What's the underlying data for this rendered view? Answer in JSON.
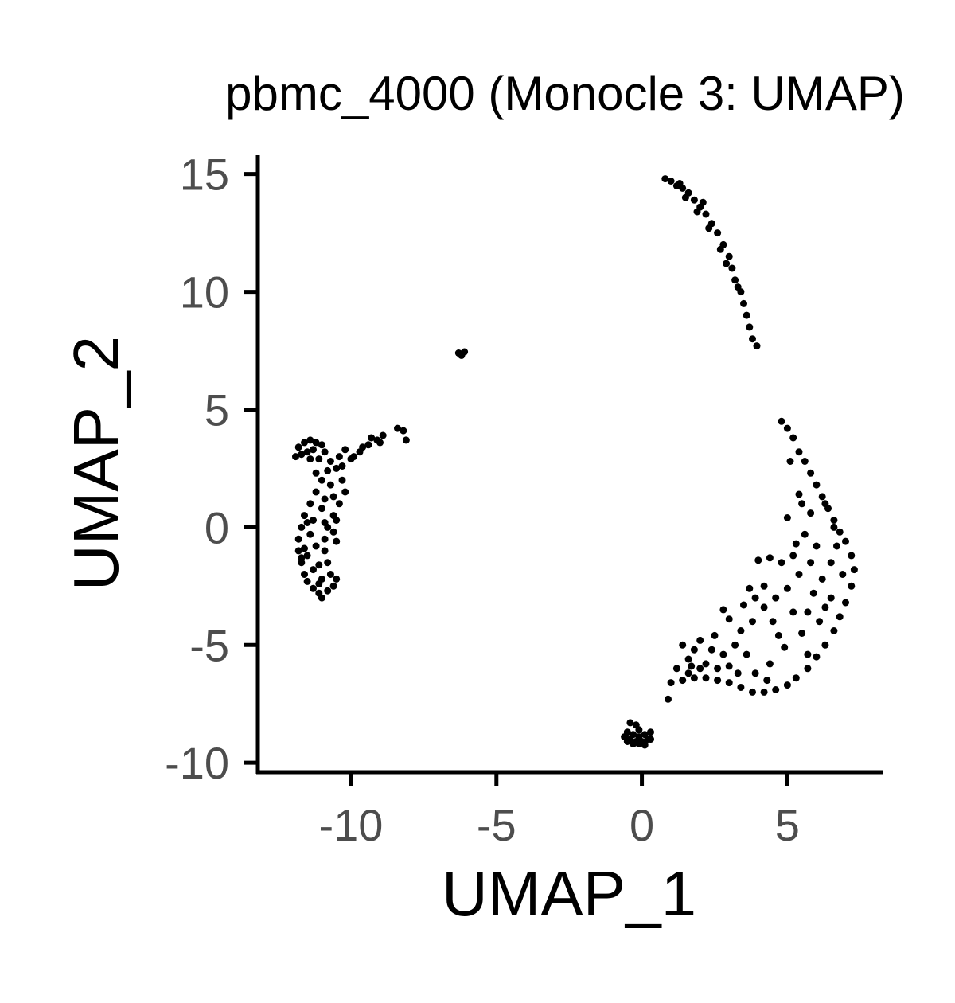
{
  "chart_data": {
    "type": "scatter",
    "title": "pbmc_4000 (Monocle 3: UMAP)",
    "xlabel": "UMAP_1",
    "ylabel": "UMAP_2",
    "xlim": [
      -13.2,
      8.3
    ],
    "ylim": [
      -10.4,
      15.8
    ],
    "x_ticks": [
      -10,
      -5,
      0,
      5
    ],
    "y_ticks": [
      -10,
      -5,
      0,
      5,
      10,
      15
    ],
    "x_tick_labels": [
      "-10",
      "-5",
      "0",
      "5"
    ],
    "y_tick_labels": [
      "-10",
      "-5",
      "0",
      "5",
      "10",
      "15"
    ],
    "grid": false,
    "legend": "none",
    "point_color": "#000000",
    "series": [
      {
        "values": [
          [
            -11.9,
            3.0
          ],
          [
            -11.8,
            3.4
          ],
          [
            -11.6,
            3.6
          ],
          [
            -11.4,
            3.7
          ],
          [
            -11.2,
            3.6
          ],
          [
            -11.0,
            3.5
          ],
          [
            -11.7,
            3.1
          ],
          [
            -11.4,
            2.9
          ],
          [
            -11.1,
            2.9
          ],
          [
            -10.9,
            3.2
          ],
          [
            -11.3,
            3.3
          ],
          [
            -11.5,
            3.2
          ],
          [
            -10.7,
            2.8
          ],
          [
            -10.5,
            2.5
          ],
          [
            -10.3,
            2.0
          ],
          [
            -10.2,
            1.5
          ],
          [
            -10.4,
            1.0
          ],
          [
            -10.6,
            0.5
          ],
          [
            -10.8,
            2.4
          ],
          [
            -11.0,
            2.0
          ],
          [
            -11.2,
            1.5
          ],
          [
            -11.4,
            1.0
          ],
          [
            -11.6,
            0.5
          ],
          [
            -11.7,
            0.0
          ],
          [
            -11.8,
            -0.5
          ],
          [
            -11.8,
            -1.0
          ],
          [
            -11.7,
            -1.5
          ],
          [
            -11.6,
            -2.0
          ],
          [
            -11.5,
            -2.3
          ],
          [
            -11.3,
            -2.6
          ],
          [
            -11.1,
            -2.8
          ],
          [
            -11.0,
            -3.0
          ],
          [
            -10.8,
            -2.7
          ],
          [
            -10.6,
            -2.5
          ],
          [
            -10.5,
            -2.2
          ],
          [
            -10.7,
            -2.0
          ],
          [
            -10.8,
            -1.5
          ],
          [
            -10.9,
            -1.0
          ],
          [
            -10.9,
            -0.5
          ],
          [
            -10.8,
            0.0
          ],
          [
            -10.6,
            -0.2
          ],
          [
            -10.5,
            0.3
          ],
          [
            -11.0,
            -2.2
          ],
          [
            -11.3,
            -1.8
          ],
          [
            -11.5,
            -1.2
          ],
          [
            -11.2,
            -0.8
          ],
          [
            -11.4,
            -0.3
          ],
          [
            -11.0,
            0.8
          ],
          [
            -11.3,
            0.3
          ],
          [
            -10.9,
            1.2
          ],
          [
            -11.1,
            -1.6
          ],
          [
            -11.6,
            -0.9
          ],
          [
            -10.7,
            1.8
          ],
          [
            -11.2,
            2.3
          ],
          [
            -10.9,
            0.2
          ],
          [
            -11.5,
            0.2
          ],
          [
            -11.1,
            -2.4
          ],
          [
            -10.6,
            1.3
          ],
          [
            -10.5,
            -0.6
          ],
          [
            -11.7,
            -1.3
          ],
          [
            -10.3,
            2.6
          ],
          [
            -10.0,
            2.9
          ],
          [
            -9.7,
            3.2
          ],
          [
            -9.4,
            3.5
          ],
          [
            -9.1,
            3.7
          ],
          [
            -8.9,
            3.9
          ],
          [
            -9.9,
            3.0
          ],
          [
            -9.6,
            3.4
          ],
          [
            -10.2,
            3.3
          ],
          [
            -9.3,
            3.8
          ],
          [
            -10.4,
            3.0
          ],
          [
            -9.0,
            3.6
          ],
          [
            -8.4,
            4.2
          ],
          [
            -8.2,
            4.1
          ],
          [
            -8.1,
            3.7
          ],
          [
            -6.3,
            7.4
          ],
          [
            -6.2,
            7.3
          ],
          [
            -6.1,
            7.45
          ],
          [
            -6.25,
            7.35
          ],
          [
            0.8,
            14.8
          ],
          [
            1.0,
            14.7
          ],
          [
            1.2,
            14.5
          ],
          [
            1.4,
            14.4
          ],
          [
            1.6,
            14.2
          ],
          [
            1.8,
            13.9
          ],
          [
            2.0,
            13.6
          ],
          [
            2.2,
            13.3
          ],
          [
            2.4,
            12.9
          ],
          [
            2.6,
            12.5
          ],
          [
            2.8,
            12.0
          ],
          [
            3.0,
            11.5
          ],
          [
            3.1,
            11.0
          ],
          [
            3.2,
            10.5
          ],
          [
            3.4,
            10.0
          ],
          [
            3.5,
            9.5
          ],
          [
            3.6,
            9.0
          ],
          [
            3.7,
            8.5
          ],
          [
            3.8,
            8.0
          ],
          [
            3.95,
            7.7
          ],
          [
            1.5,
            14.0
          ],
          [
            1.9,
            13.4
          ],
          [
            2.3,
            12.7
          ],
          [
            2.7,
            11.8
          ],
          [
            1.3,
            14.6
          ],
          [
            2.1,
            13.8
          ],
          [
            2.9,
            11.2
          ],
          [
            3.3,
            10.2
          ],
          [
            4.8,
            4.5
          ],
          [
            5.0,
            4.2
          ],
          [
            5.2,
            3.8
          ],
          [
            5.4,
            3.2
          ],
          [
            5.6,
            2.8
          ],
          [
            5.8,
            2.3
          ],
          [
            6.0,
            1.8
          ],
          [
            6.2,
            1.3
          ],
          [
            6.4,
            0.8
          ],
          [
            6.6,
            0.3
          ],
          [
            6.8,
            -0.2
          ],
          [
            7.0,
            -0.6
          ],
          [
            7.2,
            -1.2
          ],
          [
            7.3,
            -1.8
          ],
          [
            7.2,
            -2.5
          ],
          [
            7.0,
            -3.2
          ],
          [
            6.8,
            -3.8
          ],
          [
            6.6,
            -4.4
          ],
          [
            6.3,
            -5.0
          ],
          [
            6.0,
            -5.5
          ],
          [
            5.7,
            -6.0
          ],
          [
            5.3,
            -6.4
          ],
          [
            5.0,
            -6.7
          ],
          [
            4.6,
            -6.9
          ],
          [
            4.2,
            -7.0
          ],
          [
            3.8,
            -7.0
          ],
          [
            3.4,
            -6.8
          ],
          [
            3.0,
            -6.6
          ],
          [
            2.6,
            -6.5
          ],
          [
            2.2,
            -6.4
          ],
          [
            1.8,
            -6.4
          ],
          [
            1.4,
            -6.5
          ],
          [
            1.0,
            -6.6
          ],
          [
            0.9,
            -7.3
          ],
          [
            1.2,
            -6.0
          ],
          [
            1.6,
            -5.6
          ],
          [
            1.4,
            -5.0
          ],
          [
            1.8,
            -5.2
          ],
          [
            2.2,
            -5.8
          ],
          [
            2.6,
            -6.0
          ],
          [
            3.0,
            -5.9
          ],
          [
            2.0,
            -4.8
          ],
          [
            2.4,
            -5.2
          ],
          [
            1.6,
            -6.2
          ],
          [
            2.8,
            -5.4
          ],
          [
            3.2,
            -5.0
          ],
          [
            3.4,
            -4.4
          ],
          [
            3.8,
            -4.0
          ],
          [
            4.2,
            -3.4
          ],
          [
            4.6,
            -3.0
          ],
          [
            5.0,
            -2.6
          ],
          [
            5.4,
            -2.0
          ],
          [
            5.8,
            -1.5
          ],
          [
            6.0,
            -0.8
          ],
          [
            5.2,
            -1.2
          ],
          [
            4.8,
            -1.5
          ],
          [
            5.6,
            -0.3
          ],
          [
            5.8,
            0.6
          ],
          [
            5.4,
            1.4
          ],
          [
            5.9,
            -2.8
          ],
          [
            6.2,
            -2.2
          ],
          [
            6.5,
            -1.5
          ],
          [
            6.5,
            -3.0
          ],
          [
            6.1,
            -4.0
          ],
          [
            5.5,
            -4.5
          ],
          [
            4.9,
            -5.1
          ],
          [
            4.4,
            -5.8
          ],
          [
            3.9,
            -6.2
          ],
          [
            3.5,
            -3.3
          ],
          [
            4.2,
            -2.5
          ],
          [
            4.5,
            -4.0
          ],
          [
            3.6,
            -5.4
          ],
          [
            5.0,
            0.4
          ],
          [
            5.3,
            -0.7
          ],
          [
            6.7,
            -0.8
          ],
          [
            6.9,
            -2.0
          ],
          [
            4.0,
            -1.4
          ],
          [
            4.4,
            -1.3
          ],
          [
            5.1,
            2.8
          ],
          [
            5.5,
            1.0
          ],
          [
            6.3,
            -3.4
          ],
          [
            5.2,
            -3.6
          ],
          [
            4.7,
            -4.6
          ],
          [
            2.8,
            -3.5
          ],
          [
            3.0,
            -3.9
          ],
          [
            3.7,
            -2.6
          ],
          [
            5.7,
            -5.4
          ],
          [
            4.3,
            -6.5
          ],
          [
            3.3,
            -6.2
          ],
          [
            2.0,
            -6.0
          ],
          [
            1.7,
            -5.9
          ],
          [
            2.5,
            -4.6
          ],
          [
            3.9,
            -3.0
          ],
          [
            6.6,
            0.0
          ],
          [
            6.3,
            1.0
          ],
          [
            5.7,
            -3.6
          ]
        ]
      },
      {
        "values": [
          [
            -0.4,
            -8.3
          ],
          [
            -0.2,
            -8.4
          ],
          [
            -0.1,
            -8.6
          ],
          [
            -0.5,
            -8.7
          ],
          [
            -0.3,
            -8.8
          ],
          [
            -0.1,
            -8.9
          ],
          [
            0.1,
            -8.8
          ],
          [
            0.3,
            -8.7
          ],
          [
            -0.6,
            -8.9
          ],
          [
            -0.4,
            -9.0
          ],
          [
            -0.2,
            -9.1
          ],
          [
            0.0,
            -9.1
          ],
          [
            0.2,
            -9.0
          ],
          [
            -0.3,
            -9.2
          ],
          [
            -0.1,
            -9.2
          ],
          [
            0.1,
            -9.25
          ],
          [
            -0.5,
            -9.1
          ],
          [
            0.3,
            -9.0
          ]
        ]
      }
    ]
  }
}
